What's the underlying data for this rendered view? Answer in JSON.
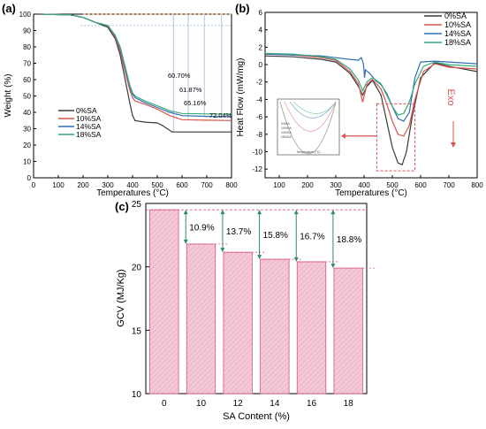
{
  "panels": {
    "a": {
      "label": "(a)"
    },
    "b": {
      "label": "(b)"
    },
    "c": {
      "label": "(c)"
    }
  },
  "colors": {
    "0SA": "#3a3a3a",
    "10SA": "#d9534f",
    "14SA": "#2f6fb3",
    "18SA": "#3aa87a",
    "bar_fill": "#f3c9d6",
    "bar_stroke": "#d4538a",
    "ref_line": "#e48a2a",
    "arrow": "#2e8a6e",
    "dash_box": "#d9534f"
  },
  "chart_data": [
    {
      "panel": "a",
      "type": "line",
      "xlabel": "Temperatures (°C)",
      "ylabel": "Weight (%)",
      "xlim": [
        0,
        800
      ],
      "ylim": [
        0,
        100
      ],
      "xticks": [
        "0",
        "100",
        "200",
        "300",
        "400",
        "500",
        "600",
        "700",
        "800"
      ],
      "yticks": [
        "0",
        "10",
        "20",
        "30",
        "40",
        "50",
        "60",
        "70",
        "80",
        "90",
        "100"
      ],
      "legend": [
        "0%SA",
        "10%SA",
        "14%SA",
        "18%SA"
      ],
      "legend_position": "bottom-left",
      "annotations": [
        "60.70%",
        "61.87%",
        "65.16%",
        "72.04%"
      ],
      "series": [
        {
          "name": "0%SA",
          "x": [
            30,
            150,
            200,
            250,
            300,
            330,
            350,
            370,
            390,
            400,
            410,
            450,
            500,
            520,
            540,
            560,
            600,
            700,
            800
          ],
          "y": [
            100,
            99.5,
            98,
            95,
            92,
            85,
            75,
            60,
            45,
            38,
            35,
            34,
            33.5,
            32,
            30,
            28,
            28,
            28,
            28
          ]
        },
        {
          "name": "10%SA",
          "x": [
            30,
            150,
            200,
            250,
            300,
            330,
            350,
            370,
            390,
            400,
            410,
            450,
            500,
            550,
            600,
            700,
            800
          ],
          "y": [
            100,
            99.5,
            98,
            95,
            93,
            86,
            77,
            65,
            53,
            49,
            47,
            45,
            42,
            38,
            35.5,
            35.2,
            35
          ]
        },
        {
          "name": "14%SA",
          "x": [
            30,
            150,
            200,
            250,
            300,
            330,
            350,
            370,
            390,
            400,
            410,
            450,
            500,
            550,
            600,
            700,
            800
          ],
          "y": [
            100,
            99.5,
            98,
            95,
            93,
            87,
            79,
            67,
            55,
            51,
            49,
            46,
            43,
            40,
            38,
            37.5,
            37.3
          ]
        },
        {
          "name": "18%SA",
          "x": [
            30,
            150,
            200,
            250,
            300,
            330,
            350,
            370,
            390,
            400,
            410,
            450,
            500,
            550,
            600,
            700,
            800
          ],
          "y": [
            100,
            99.5,
            98,
            95,
            93,
            87,
            80,
            68,
            56,
            52,
            50,
            47,
            44,
            41,
            39.3,
            39,
            38.9
          ]
        }
      ]
    },
    {
      "panel": "b",
      "type": "line",
      "xlabel": "Temperatures (°C)",
      "ylabel": "Heat Flow (mW/mg)",
      "xlim": [
        50,
        800
      ],
      "ylim": [
        -13,
        6
      ],
      "xticks": [
        "100",
        "200",
        "300",
        "400",
        "500",
        "600",
        "700",
        "800"
      ],
      "yticks": [
        "-12",
        "-10",
        "-8",
        "-6",
        "-4",
        "-2",
        "0",
        "2",
        "4",
        "6"
      ],
      "legend": [
        "0%SA",
        "10%SA",
        "14%SA",
        "18%SA"
      ],
      "legend_position": "top-right",
      "annotations": [
        "Exo"
      ],
      "inset": {
        "xlabel": "Temperature (°C)",
        "legend": [
          "0%SA",
          "10%SA",
          "14%SA",
          "18%SA"
        ]
      },
      "series": [
        {
          "name": "0%SA",
          "x": [
            50,
            150,
            250,
            300,
            350,
            380,
            395,
            410,
            430,
            460,
            480,
            500,
            520,
            535,
            550,
            570,
            600,
            650,
            700,
            800
          ],
          "y": [
            1.0,
            0.9,
            0.6,
            0.3,
            -1.0,
            -2.5,
            -3.5,
            -2.5,
            -1.8,
            -3.5,
            -6.5,
            -9.5,
            -11.3,
            -11.5,
            -10.0,
            -6.0,
            -1.5,
            0.2,
            -0.2,
            -0.8
          ]
        },
        {
          "name": "10%SA",
          "x": [
            50,
            150,
            250,
            300,
            350,
            380,
            395,
            410,
            430,
            460,
            480,
            500,
            520,
            540,
            560,
            580,
            610,
            650,
            700,
            800
          ],
          "y": [
            1.2,
            1.1,
            0.8,
            0.5,
            -0.8,
            -2.2,
            -4.3,
            -2.3,
            -1.7,
            -2.8,
            -4.5,
            -6.5,
            -8.0,
            -8.2,
            -7.0,
            -4.0,
            -0.8,
            0.1,
            -0.3,
            -0.5
          ]
        },
        {
          "name": "14%SA",
          "x": [
            50,
            150,
            250,
            300,
            350,
            380,
            390,
            395,
            398,
            402,
            405,
            420,
            440,
            460,
            480,
            500,
            520,
            540,
            560,
            580,
            600,
            650,
            700,
            800
          ],
          "y": [
            1.2,
            1.1,
            1.0,
            0.8,
            0.6,
            0.5,
            0.8,
            0.4,
            0.0,
            -1.5,
            -0.6,
            -1.0,
            -1.8,
            -2.3,
            -3.3,
            -4.8,
            -6.2,
            -6.5,
            -5.5,
            -1.5,
            0.3,
            0.4,
            0.3,
            0.1
          ]
        },
        {
          "name": "18%SA",
          "x": [
            50,
            150,
            250,
            300,
            350,
            380,
            395,
            410,
            430,
            460,
            480,
            500,
            520,
            540,
            560,
            580,
            610,
            650,
            700,
            800
          ],
          "y": [
            1.3,
            1.2,
            0.9,
            0.6,
            -0.5,
            -1.8,
            -3.0,
            -2.0,
            -1.5,
            -2.2,
            -3.5,
            -4.8,
            -5.8,
            -5.6,
            -4.3,
            -2.2,
            -0.2,
            0.3,
            0.0,
            -0.2
          ]
        }
      ]
    },
    {
      "panel": "c",
      "type": "bar",
      "xlabel": "SA Content (%)",
      "ylabel": "GCV (MJ/Kg)",
      "ylim": [
        10,
        25
      ],
      "yticks": [
        "10",
        "15",
        "20",
        "25"
      ],
      "categories": [
        "0",
        "10",
        "12",
        "14",
        "16",
        "18"
      ],
      "values": [
        24.5,
        21.8,
        21.15,
        20.6,
        20.4,
        19.9
      ],
      "annotations": [
        "10.9%",
        "13.7%",
        "15.8%",
        "16.7%",
        "18.8%"
      ]
    }
  ]
}
